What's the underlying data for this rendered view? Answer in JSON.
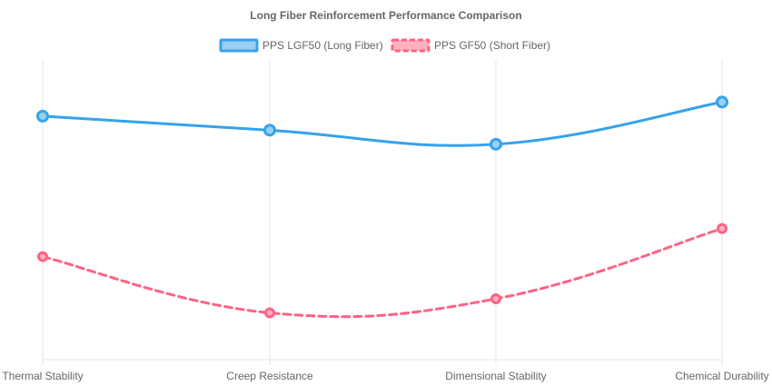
{
  "chart_data": {
    "type": "line",
    "title": "Long Fiber Reinforcement Performance Comparison",
    "categories": [
      "Thermal Stability",
      "Creep Resistance",
      "Dimensional Stability",
      "Chemical Durability"
    ],
    "series": [
      {
        "name": "PPS LGF50 (Long Fiber)",
        "values": [
          92,
          89,
          86,
          95
        ],
        "color": "#36a2eb",
        "fill": "#9ad0f5",
        "dashed": false
      },
      {
        "name": "PPS GF50 (Short Fiber)",
        "values": [
          62,
          50,
          53,
          68
        ],
        "color": "#ff6384",
        "fill": "#ffb1c1",
        "dashed": true
      }
    ],
    "ylim": [
      40,
      104
    ],
    "grid": {
      "x": true,
      "y": false
    },
    "legend": "top-center",
    "xlabel": "",
    "ylabel": ""
  }
}
